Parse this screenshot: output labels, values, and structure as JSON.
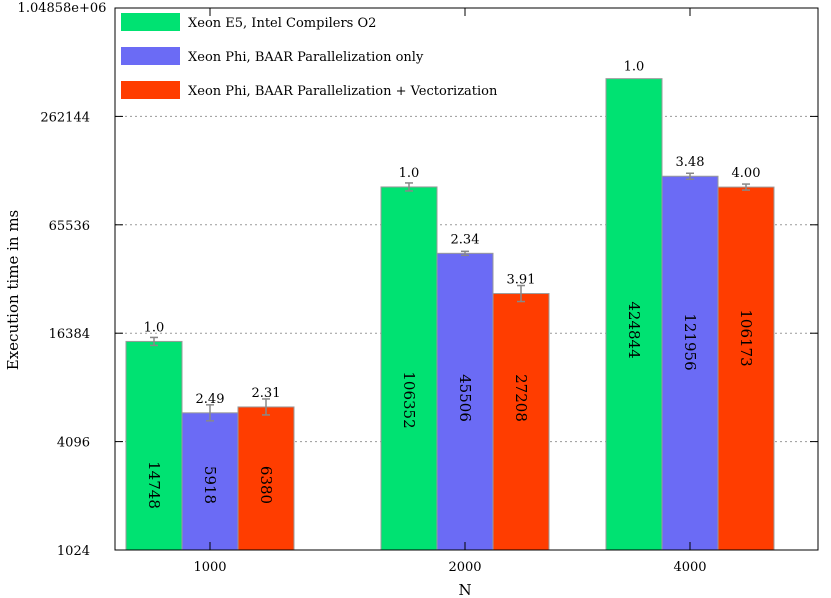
{
  "chart_data": {
    "type": "bar",
    "xlabel": "N",
    "ylabel": "Execution time in ms",
    "categories": [
      "1000",
      "2000",
      "4000"
    ],
    "y_scale": "log2",
    "ylim": [
      1024,
      1048576
    ],
    "y_ticks": [
      {
        "value": 1024,
        "label": "1024"
      },
      {
        "value": 4096,
        "label": "4096"
      },
      {
        "value": 16384,
        "label": "16384"
      },
      {
        "value": 65536,
        "label": "65536"
      },
      {
        "value": 262144,
        "label": "262144"
      },
      {
        "value": 1048576,
        "label": "1.04858e+06"
      }
    ],
    "grid": true,
    "legend_position": "top-left",
    "series": [
      {
        "name": "Xeon E5, Intel Compilers O2",
        "color": "#00e272",
        "values": [
          14748,
          106352,
          424844
        ],
        "value_labels": [
          "14748",
          "106352",
          "424844"
        ],
        "speedup_labels": [
          "1.0",
          "1.0",
          "1.0"
        ],
        "error_bars": [
          true,
          true,
          false
        ]
      },
      {
        "name": "Xeon Phi, BAAR Parallelization only",
        "color": "#6b6bf5",
        "values": [
          5918,
          45506,
          121956
        ],
        "value_labels": [
          "5918",
          "45506",
          "121956"
        ],
        "speedup_labels": [
          "2.49",
          "2.34",
          "3.48"
        ],
        "error_bars": [
          true,
          true,
          true
        ]
      },
      {
        "name": "Xeon Phi, BAAR Parallelization + Vectorization",
        "color": "#ff3d00",
        "values": [
          6380,
          27208,
          106173
        ],
        "value_labels": [
          "6380",
          "27208",
          "106173"
        ],
        "speedup_labels": [
          "2.31",
          "3.91",
          "4.00"
        ],
        "error_bars": [
          true,
          true,
          true
        ]
      }
    ]
  }
}
